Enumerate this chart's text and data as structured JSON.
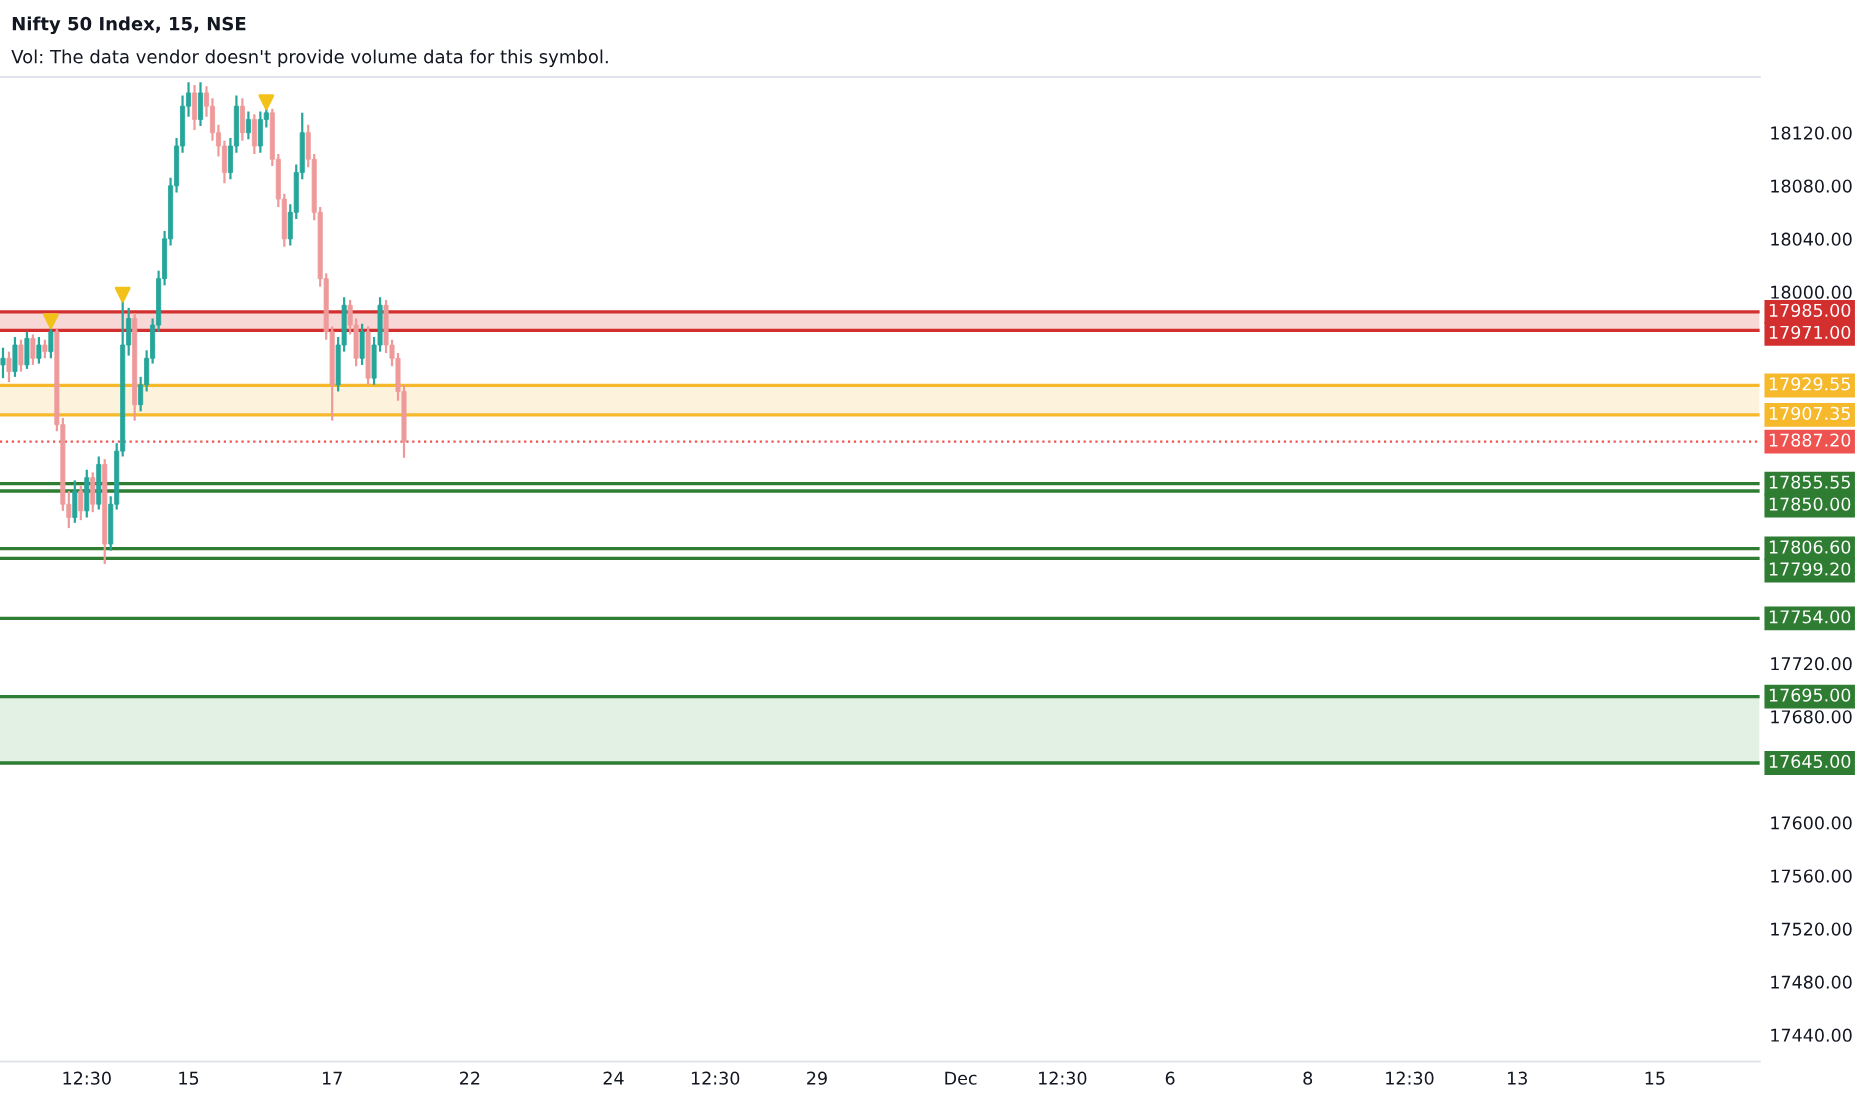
{
  "chart_data": {
    "type": "candlestick",
    "title": "Nifty 50 Index, 15, NSE",
    "annotations": [
      "Vol: The data vendor doesn't provide volume data for this symbol."
    ],
    "categories": [
      null,
      null,
      null,
      null,
      null,
      null,
      null,
      null,
      null,
      null,
      null,
      null,
      null,
      null,
      "12:30",
      null,
      null,
      null,
      null,
      null,
      null,
      null,
      null,
      null,
      null,
      null,
      null,
      null,
      null,
      null,
      null,
      "15",
      null,
      null,
      null,
      null,
      null,
      null,
      null,
      null,
      null,
      null,
      null,
      null,
      null,
      null,
      null,
      null,
      null,
      null,
      null,
      null,
      null,
      null,
      null,
      "17",
      null,
      null,
      null,
      null,
      null,
      null,
      null,
      null,
      null,
      null,
      null,
      null,
      null,
      null,
      null,
      null,
      null,
      null,
      null,
      null,
      null,
      null,
      "22",
      null,
      null,
      null,
      null,
      null,
      null,
      null,
      null,
      null,
      null,
      null,
      null,
      null,
      null,
      null,
      null,
      null,
      null,
      null,
      null,
      null,
      null,
      null,
      "24",
      null,
      null,
      null,
      null,
      null,
      null,
      null,
      null,
      null,
      null,
      null,
      null,
      null,
      null,
      null,
      null,
      "12:30",
      null,
      null,
      null,
      null,
      null,
      null,
      null,
      null,
      null,
      null,
      null,
      null,
      null,
      null,
      null,
      null,
      "29",
      null,
      null,
      null,
      null,
      null,
      null,
      null,
      null,
      null,
      null,
      null,
      null,
      null,
      null,
      null,
      null,
      null,
      null,
      null,
      null,
      null,
      null,
      null,
      "Dec",
      null,
      null,
      null,
      null,
      null,
      null,
      null,
      null,
      null,
      null,
      null,
      null,
      null,
      null,
      null,
      null,
      "12:30",
      null,
      null,
      null,
      null,
      null,
      null,
      null,
      null,
      null,
      null,
      null,
      null,
      null,
      null,
      null,
      null,
      null,
      "6",
      null,
      null,
      null,
      null,
      null,
      null,
      null,
      null,
      null,
      null,
      null,
      null,
      null,
      null,
      null,
      null,
      null,
      null,
      null,
      null,
      null,
      null,
      "8",
      null,
      null,
      null,
      null,
      null,
      null,
      null,
      null,
      null,
      null,
      null,
      null,
      null,
      null,
      null,
      null,
      "12:30",
      null,
      null,
      null,
      null,
      null,
      null,
      null,
      null,
      null,
      null,
      null,
      null,
      null,
      null,
      null,
      null,
      null,
      "13",
      null,
      null,
      null,
      null,
      null,
      null,
      null,
      null,
      null,
      null,
      null,
      null,
      null,
      null,
      null,
      null,
      null,
      null,
      null,
      null,
      null,
      null,
      "15",
      null,
      null,
      null,
      null,
      null,
      null,
      null,
      null,
      null,
      null,
      null,
      null,
      null,
      null,
      null,
      null,
      null
    ],
    "ohlc": [
      [
        17945,
        17958,
        17935,
        17950
      ],
      [
        17950,
        17955,
        17932,
        17940
      ],
      [
        17940,
        17966,
        17936,
        17960
      ],
      [
        17960,
        17964,
        17940,
        17945
      ],
      [
        17945,
        17970,
        17942,
        17965
      ],
      [
        17965,
        17968,
        17945,
        17950
      ],
      [
        17950,
        17966,
        17946,
        17960
      ],
      [
        17960,
        17964,
        17950,
        17955
      ],
      [
        17955,
        17975,
        17950,
        17970
      ],
      [
        17970,
        17972,
        17895,
        17900
      ],
      [
        17900,
        17905,
        17835,
        17840
      ],
      [
        17840,
        17850,
        17822,
        17830
      ],
      [
        17830,
        17858,
        17826,
        17850
      ],
      [
        17850,
        17854,
        17828,
        17835
      ],
      [
        17835,
        17866,
        17830,
        17860
      ],
      [
        17860,
        17864,
        17834,
        17840
      ],
      [
        17840,
        17876,
        17836,
        17870
      ],
      [
        17870,
        17874,
        17795,
        17810
      ],
      [
        17810,
        17846,
        17805,
        17840
      ],
      [
        17840,
        17886,
        17836,
        17880
      ],
      [
        17880,
        17996,
        17876,
        17960
      ],
      [
        17960,
        17988,
        17952,
        17980
      ],
      [
        17980,
        17984,
        17903,
        17915
      ],
      [
        17915,
        17936,
        17910,
        17930
      ],
      [
        17930,
        17956,
        17925,
        17950
      ],
      [
        17950,
        17980,
        17946,
        17975
      ],
      [
        17975,
        18016,
        17970,
        18010
      ],
      [
        18010,
        18046,
        18005,
        18040
      ],
      [
        18040,
        18086,
        18035,
        18080
      ],
      [
        18080,
        18116,
        18075,
        18110
      ],
      [
        18110,
        18148,
        18105,
        18140
      ],
      [
        18140,
        18158,
        18132,
        18150
      ],
      [
        18150,
        18156,
        18122,
        18130
      ],
      [
        18130,
        18158,
        18125,
        18150
      ],
      [
        18150,
        18155,
        18132,
        18140
      ],
      [
        18140,
        18146,
        18114,
        18120
      ],
      [
        18120,
        18126,
        18102,
        18110
      ],
      [
        18110,
        18114,
        18082,
        18090
      ],
      [
        18090,
        18116,
        18085,
        18110
      ],
      [
        18110,
        18148,
        18105,
        18140
      ],
      [
        18140,
        18146,
        18114,
        18120
      ],
      [
        18120,
        18136,
        18115,
        18130
      ],
      [
        18130,
        18134,
        18104,
        18110
      ],
      [
        18110,
        18136,
        18105,
        18130
      ],
      [
        18130,
        18140,
        18124,
        18135
      ],
      [
        18135,
        18138,
        18095,
        18100
      ],
      [
        18100,
        18104,
        18064,
        18070
      ],
      [
        18070,
        18074,
        18034,
        18040
      ],
      [
        18040,
        18066,
        18035,
        18060
      ],
      [
        18060,
        18096,
        18055,
        18090
      ],
      [
        18090,
        18135,
        18085,
        18120
      ],
      [
        18120,
        18126,
        18094,
        18100
      ],
      [
        18100,
        18104,
        18054,
        18060
      ],
      [
        18060,
        18064,
        18004,
        18010
      ],
      [
        18010,
        18014,
        17964,
        17970
      ],
      [
        17970,
        17974,
        17903,
        17930
      ],
      [
        17930,
        17966,
        17925,
        17960
      ],
      [
        17960,
        17996,
        17955,
        17990
      ],
      [
        17990,
        17994,
        17968,
        17975
      ],
      [
        17975,
        17980,
        17944,
        17950
      ],
      [
        17950,
        17976,
        17945,
        17970
      ],
      [
        17970,
        17974,
        17930,
        17935
      ],
      [
        17935,
        17966,
        17930,
        17960
      ],
      [
        17960,
        17996,
        17955,
        17990
      ],
      [
        17990,
        17994,
        17954,
        17960
      ],
      [
        17960,
        17964,
        17944,
        17950
      ],
      [
        17950,
        17954,
        17918,
        17925
      ],
      [
        17925,
        17930,
        17875,
        17887.2
      ],
      null,
      null,
      null,
      null,
      null,
      null,
      null,
      null,
      null,
      null,
      null,
      null,
      null,
      null,
      null,
      null,
      null,
      null,
      null,
      null,
      null,
      null,
      null,
      null,
      null,
      null,
      null,
      null,
      null,
      null,
      null,
      null,
      null,
      null,
      null,
      null,
      null,
      null,
      null,
      null,
      null,
      null,
      null,
      null,
      null,
      null,
      null,
      null,
      null,
      null,
      null,
      null,
      null,
      null,
      null,
      null,
      null,
      null,
      null,
      null,
      null,
      null,
      null,
      null,
      null,
      null,
      null,
      null,
      null,
      null,
      null,
      null,
      null,
      null,
      null,
      null,
      null,
      null,
      null,
      null,
      null,
      null,
      null,
      null,
      null,
      null,
      null,
      null,
      null,
      null,
      null,
      null,
      null,
      null,
      null,
      null,
      null,
      null,
      null,
      null,
      null,
      null,
      null,
      null,
      null,
      null,
      null,
      null,
      null,
      null,
      null,
      null,
      null,
      null,
      null,
      null,
      null,
      null,
      null,
      null,
      null,
      null,
      null,
      null,
      null,
      null,
      null,
      null,
      null,
      null,
      null,
      null,
      null,
      null,
      null,
      null,
      null,
      null,
      null,
      null,
      null,
      null,
      null,
      null,
      null,
      null,
      null,
      null,
      null,
      null,
      null,
      null,
      null,
      null,
      null,
      null,
      null,
      null,
      null,
      null,
      null,
      null,
      null,
      null,
      null,
      null,
      null,
      null,
      null,
      null,
      null,
      null,
      null,
      null,
      null,
      null,
      null,
      null,
      null,
      null,
      null,
      null,
      null,
      null,
      null,
      null,
      null,
      null,
      null,
      null,
      null,
      null,
      null,
      null,
      null,
      null,
      null,
      null,
      null,
      null,
      null,
      null,
      null,
      null,
      null,
      null,
      null,
      null,
      null,
      null,
      null,
      null,
      null,
      null,
      null,
      null,
      null,
      null,
      null,
      null,
      null,
      null,
      null,
      null,
      null,
      null
    ],
    "colors": [
      "#26a69a",
      "#ef9a9a",
      "#26a69a",
      "#ef9a9a",
      "#26a69a",
      "#ef9a9a",
      "#26a69a",
      "#ef9a9a",
      "#26a69a",
      "#ef9a9a",
      "#ef9a9a",
      "#ef9a9a",
      "#26a69a",
      "#ef9a9a",
      "#26a69a",
      "#ef9a9a",
      "#26a69a",
      "#ef9a9a",
      "#26a69a",
      "#26a69a",
      "#26a69a",
      "#26a69a",
      "#ef9a9a",
      "#26a69a",
      "#26a69a",
      "#26a69a",
      "#26a69a",
      "#26a69a",
      "#26a69a",
      "#26a69a",
      "#26a69a",
      "#26a69a",
      "#ef9a9a",
      "#26a69a",
      "#ef9a9a",
      "#ef9a9a",
      "#ef9a9a",
      "#ef9a9a",
      "#26a69a",
      "#26a69a",
      "#ef9a9a",
      "#26a69a",
      "#ef9a9a",
      "#26a69a",
      "#26a69a",
      "#ef9a9a",
      "#ef9a9a",
      "#ef9a9a",
      "#26a69a",
      "#26a69a",
      "#26a69a",
      "#ef9a9a",
      "#ef9a9a",
      "#ef9a9a",
      "#ef9a9a",
      "#ef9a9a",
      "#26a69a",
      "#26a69a",
      "#ef9a9a",
      "#ef9a9a",
      "#26a69a",
      "#ef9a9a",
      "#26a69a",
      "#26a69a",
      "#ef9a9a",
      "#ef9a9a",
      "#ef9a9a",
      "#ef9a9a",
      null,
      null,
      null,
      null,
      null,
      null,
      null,
      null,
      null,
      null,
      null,
      null,
      null,
      null,
      null,
      null,
      null,
      null,
      null,
      null,
      null,
      null,
      null,
      null,
      null,
      null,
      null,
      null,
      null,
      null,
      null,
      null,
      null,
      null,
      null,
      null,
      null,
      null,
      null,
      null,
      null,
      null,
      null,
      null,
      null,
      null,
      null,
      null,
      null,
      null,
      null,
      null,
      null,
      null,
      null,
      null,
      null,
      null,
      null,
      null,
      null,
      null,
      null,
      null,
      null,
      null,
      null,
      null,
      null,
      null,
      null,
      null,
      null,
      null,
      null,
      null,
      null,
      null,
      null,
      null,
      null,
      null,
      null,
      null,
      null,
      null,
      null,
      null,
      null,
      null,
      null,
      null,
      null,
      null,
      null,
      null,
      null,
      null,
      null,
      null,
      null,
      null,
      null,
      null,
      null,
      null,
      null,
      null,
      null,
      null,
      null,
      null,
      null,
      null,
      null,
      null,
      null,
      null,
      null,
      null,
      null,
      null,
      null,
      null,
      null,
      null,
      null,
      null,
      null,
      null,
      null,
      null,
      null,
      null,
      null,
      null,
      null,
      null,
      null,
      null,
      null,
      null,
      null,
      null,
      null,
      null,
      null,
      null,
      null,
      null,
      null,
      null,
      null,
      null,
      null,
      null,
      null,
      null,
      null,
      null,
      null,
      null,
      null,
      null,
      null,
      null,
      null,
      null,
      null,
      null,
      null,
      null,
      null,
      null,
      null,
      null,
      null,
      null,
      null,
      null,
      null,
      null,
      null,
      null,
      null,
      null,
      null,
      null,
      null,
      null,
      null,
      null,
      null,
      null,
      null,
      null,
      null,
      null,
      null,
      null,
      null,
      null,
      null,
      null,
      null,
      null,
      null,
      null,
      null,
      null,
      null,
      null,
      null,
      null,
      null,
      null,
      null,
      null,
      null,
      null,
      null,
      null,
      null,
      null,
      null,
      null
    ],
    "series": [
      {
        "type": "scatter",
        "values": [
          null,
          null,
          null,
          null,
          null,
          null,
          null,
          null,
          17978,
          null,
          null,
          null,
          null,
          null,
          null,
          null,
          null,
          null,
          null,
          null,
          17998,
          null,
          null,
          null,
          null,
          null,
          null,
          null,
          null,
          null,
          null,
          null,
          null,
          null,
          null,
          null,
          null,
          null,
          null,
          null,
          null,
          null,
          null,
          null,
          18143,
          null,
          null,
          null,
          null,
          null,
          null,
          null,
          null,
          null,
          null,
          null,
          null,
          null,
          null,
          null,
          null,
          null,
          null,
          null,
          null,
          null,
          null,
          null,
          null,
          null,
          null,
          null,
          null,
          null,
          null,
          null,
          null,
          null,
          null,
          null,
          null,
          null,
          null,
          null,
          null,
          null,
          null,
          null,
          null,
          null,
          null,
          null,
          null,
          null,
          null,
          null,
          null,
          null,
          null,
          null,
          null,
          null,
          null,
          null,
          null,
          null,
          null,
          null,
          null,
          null,
          null,
          null,
          null,
          null,
          null,
          null,
          null,
          null,
          null,
          null,
          null,
          null,
          null,
          null,
          null,
          null,
          null,
          null,
          null,
          null,
          null,
          null,
          null,
          null,
          null,
          null,
          null,
          null,
          null,
          null,
          null,
          null,
          null,
          null,
          null,
          null,
          null,
          null,
          null,
          null,
          null,
          null,
          null,
          null,
          null,
          null,
          null,
          null,
          null,
          null,
          null,
          null,
          null,
          null,
          null,
          null,
          null,
          null,
          null,
          null,
          null,
          null,
          null,
          null,
          null,
          null,
          null,
          null,
          null,
          null,
          null,
          null,
          null,
          null,
          null,
          null,
          null,
          null,
          null,
          null,
          null,
          null,
          null,
          null,
          null,
          null,
          null,
          null,
          null,
          null,
          null,
          null,
          null,
          null,
          null,
          null,
          null,
          null,
          null,
          null,
          null,
          null,
          null,
          null,
          null,
          null,
          null,
          null,
          null,
          null,
          null,
          null,
          null,
          null,
          null,
          null,
          null,
          null,
          null,
          null,
          null,
          null,
          null,
          null,
          null,
          null,
          null,
          null,
          null,
          null,
          null,
          null,
          null,
          null,
          null,
          null,
          null,
          null,
          null,
          null,
          null,
          null,
          null,
          null,
          null,
          null,
          null,
          null,
          null,
          null,
          null,
          null,
          null,
          null,
          null,
          null,
          null,
          null,
          null,
          null,
          null,
          null,
          null,
          null,
          null,
          null,
          null,
          null,
          null,
          null,
          null,
          null,
          null,
          null,
          null,
          null,
          null,
          null,
          null,
          null,
          null,
          null,
          null,
          null
        ],
        "color": "#f2c21b",
        "marker": "triangle"
      }
    ],
    "ylim": [
      17420,
      18162
    ],
    "yticks": [
      {
        "value": 17440,
        "label": "17440.00"
      },
      {
        "value": 17480,
        "label": "17480.00"
      },
      {
        "value": 17520,
        "label": "17520.00"
      },
      {
        "value": 17560,
        "label": "17560.00"
      },
      {
        "value": 17600,
        "label": "17600.00"
      },
      {
        "value": 17680,
        "label": "17680.00"
      },
      {
        "value": 17720,
        "label": "17720.00"
      },
      {
        "value": 18000,
        "label": "18000.00"
      },
      {
        "value": 18040,
        "label": "18040.00"
      },
      {
        "value": 18080,
        "label": "18080.00"
      },
      {
        "value": 18120,
        "label": "18120.00"
      }
    ],
    "bands": [
      {
        "axis": "y",
        "from": 17971,
        "to": 17985,
        "color": "#f8d7d7"
      },
      {
        "axis": "y",
        "from": 17907.35,
        "to": 17929.55,
        "color": "#fdf3dc"
      },
      {
        "axis": "y",
        "from": 17645,
        "to": 17695,
        "color": "#e3f1e4"
      }
    ],
    "ref_lines": [
      {
        "axis": "y",
        "value": 17985,
        "label": "17985.00",
        "color": "#d32f2f"
      },
      {
        "axis": "y",
        "value": 17971,
        "label": "17971.00",
        "color": "#d32f2f"
      },
      {
        "axis": "y",
        "value": 17929.55,
        "label": "17929.55",
        "color": "#f5b92b"
      },
      {
        "axis": "y",
        "value": 17907.35,
        "label": "17907.35",
        "color": "#f5b92b"
      },
      {
        "axis": "y",
        "value": 17887.2,
        "label": "17887.20",
        "color": "#ef5350",
        "line_style": "dotted"
      },
      {
        "axis": "y",
        "value": 17855.55,
        "label": "17855.55",
        "color": "#2e7d32"
      },
      {
        "axis": "y",
        "value": 17850,
        "label": "17850.00",
        "color": "#2e7d32"
      },
      {
        "axis": "y",
        "value": 17806.6,
        "label": "17806.60",
        "color": "#2e7d32"
      },
      {
        "axis": "y",
        "value": 17799.2,
        "label": "17799.20",
        "color": "#2e7d32"
      },
      {
        "axis": "y",
        "value": 17754,
        "label": "17754.00",
        "color": "#2e7d32"
      },
      {
        "axis": "y",
        "value": 17695,
        "label": "17695.00",
        "color": "#2e7d32"
      },
      {
        "axis": "y",
        "value": 17645,
        "label": "17645.00",
        "color": "#2e7d32"
      }
    ],
    "grid": false,
    "legend": false
  }
}
